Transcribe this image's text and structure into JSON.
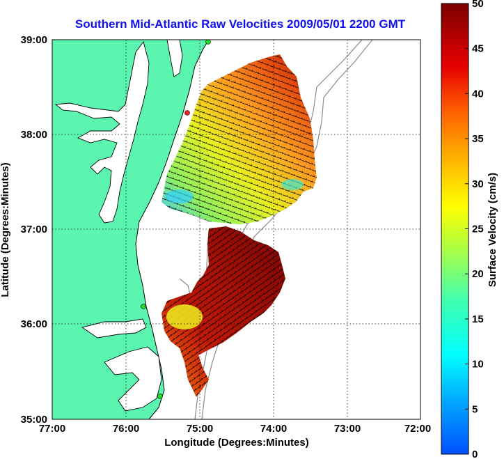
{
  "title": "Southern Mid-Atlantic Raw Velocities 2009/05/01 2200 GMT",
  "xlabel": "Longitude (Degrees:Minutes)",
  "ylabel": "Latitude (Degrees:Minutes)",
  "x_ticks": [
    "77:00",
    "76:00",
    "75:00",
    "74:00",
    "73:00",
    "72:00"
  ],
  "y_ticks": [
    "39:00",
    "38:00",
    "37:00",
    "36:00",
    "35:00"
  ],
  "colorbar": {
    "label": "Surface Velocity (cm/s)",
    "ticks": [
      "0",
      "5",
      "10",
      "15",
      "20",
      "25",
      "30",
      "35",
      "40",
      "45",
      "50"
    ]
  },
  "colors": {
    "title": "#1010ee",
    "land": "#5cf5b0",
    "water": "#ffffff",
    "coastline": "#000000",
    "bathymetry": "#8a8a8a",
    "vectors": "#000000",
    "stations": "#22dd22",
    "station_highlight": "#ee2222"
  },
  "chart_data": {
    "type": "heatmap",
    "description_kind": "map",
    "title": "Southern Mid-Atlantic Raw Velocities 2009/05/01 2200 GMT",
    "xlabel": "Longitude (Degrees:Minutes)",
    "ylabel": "Latitude (Degrees:Minutes)",
    "xlim": [
      -77.0,
      -72.0
    ],
    "ylim": [
      35.0,
      39.0
    ],
    "value_range": [
      0,
      50
    ],
    "units": "cm/s",
    "grid": true,
    "colormap": "jet"
  }
}
